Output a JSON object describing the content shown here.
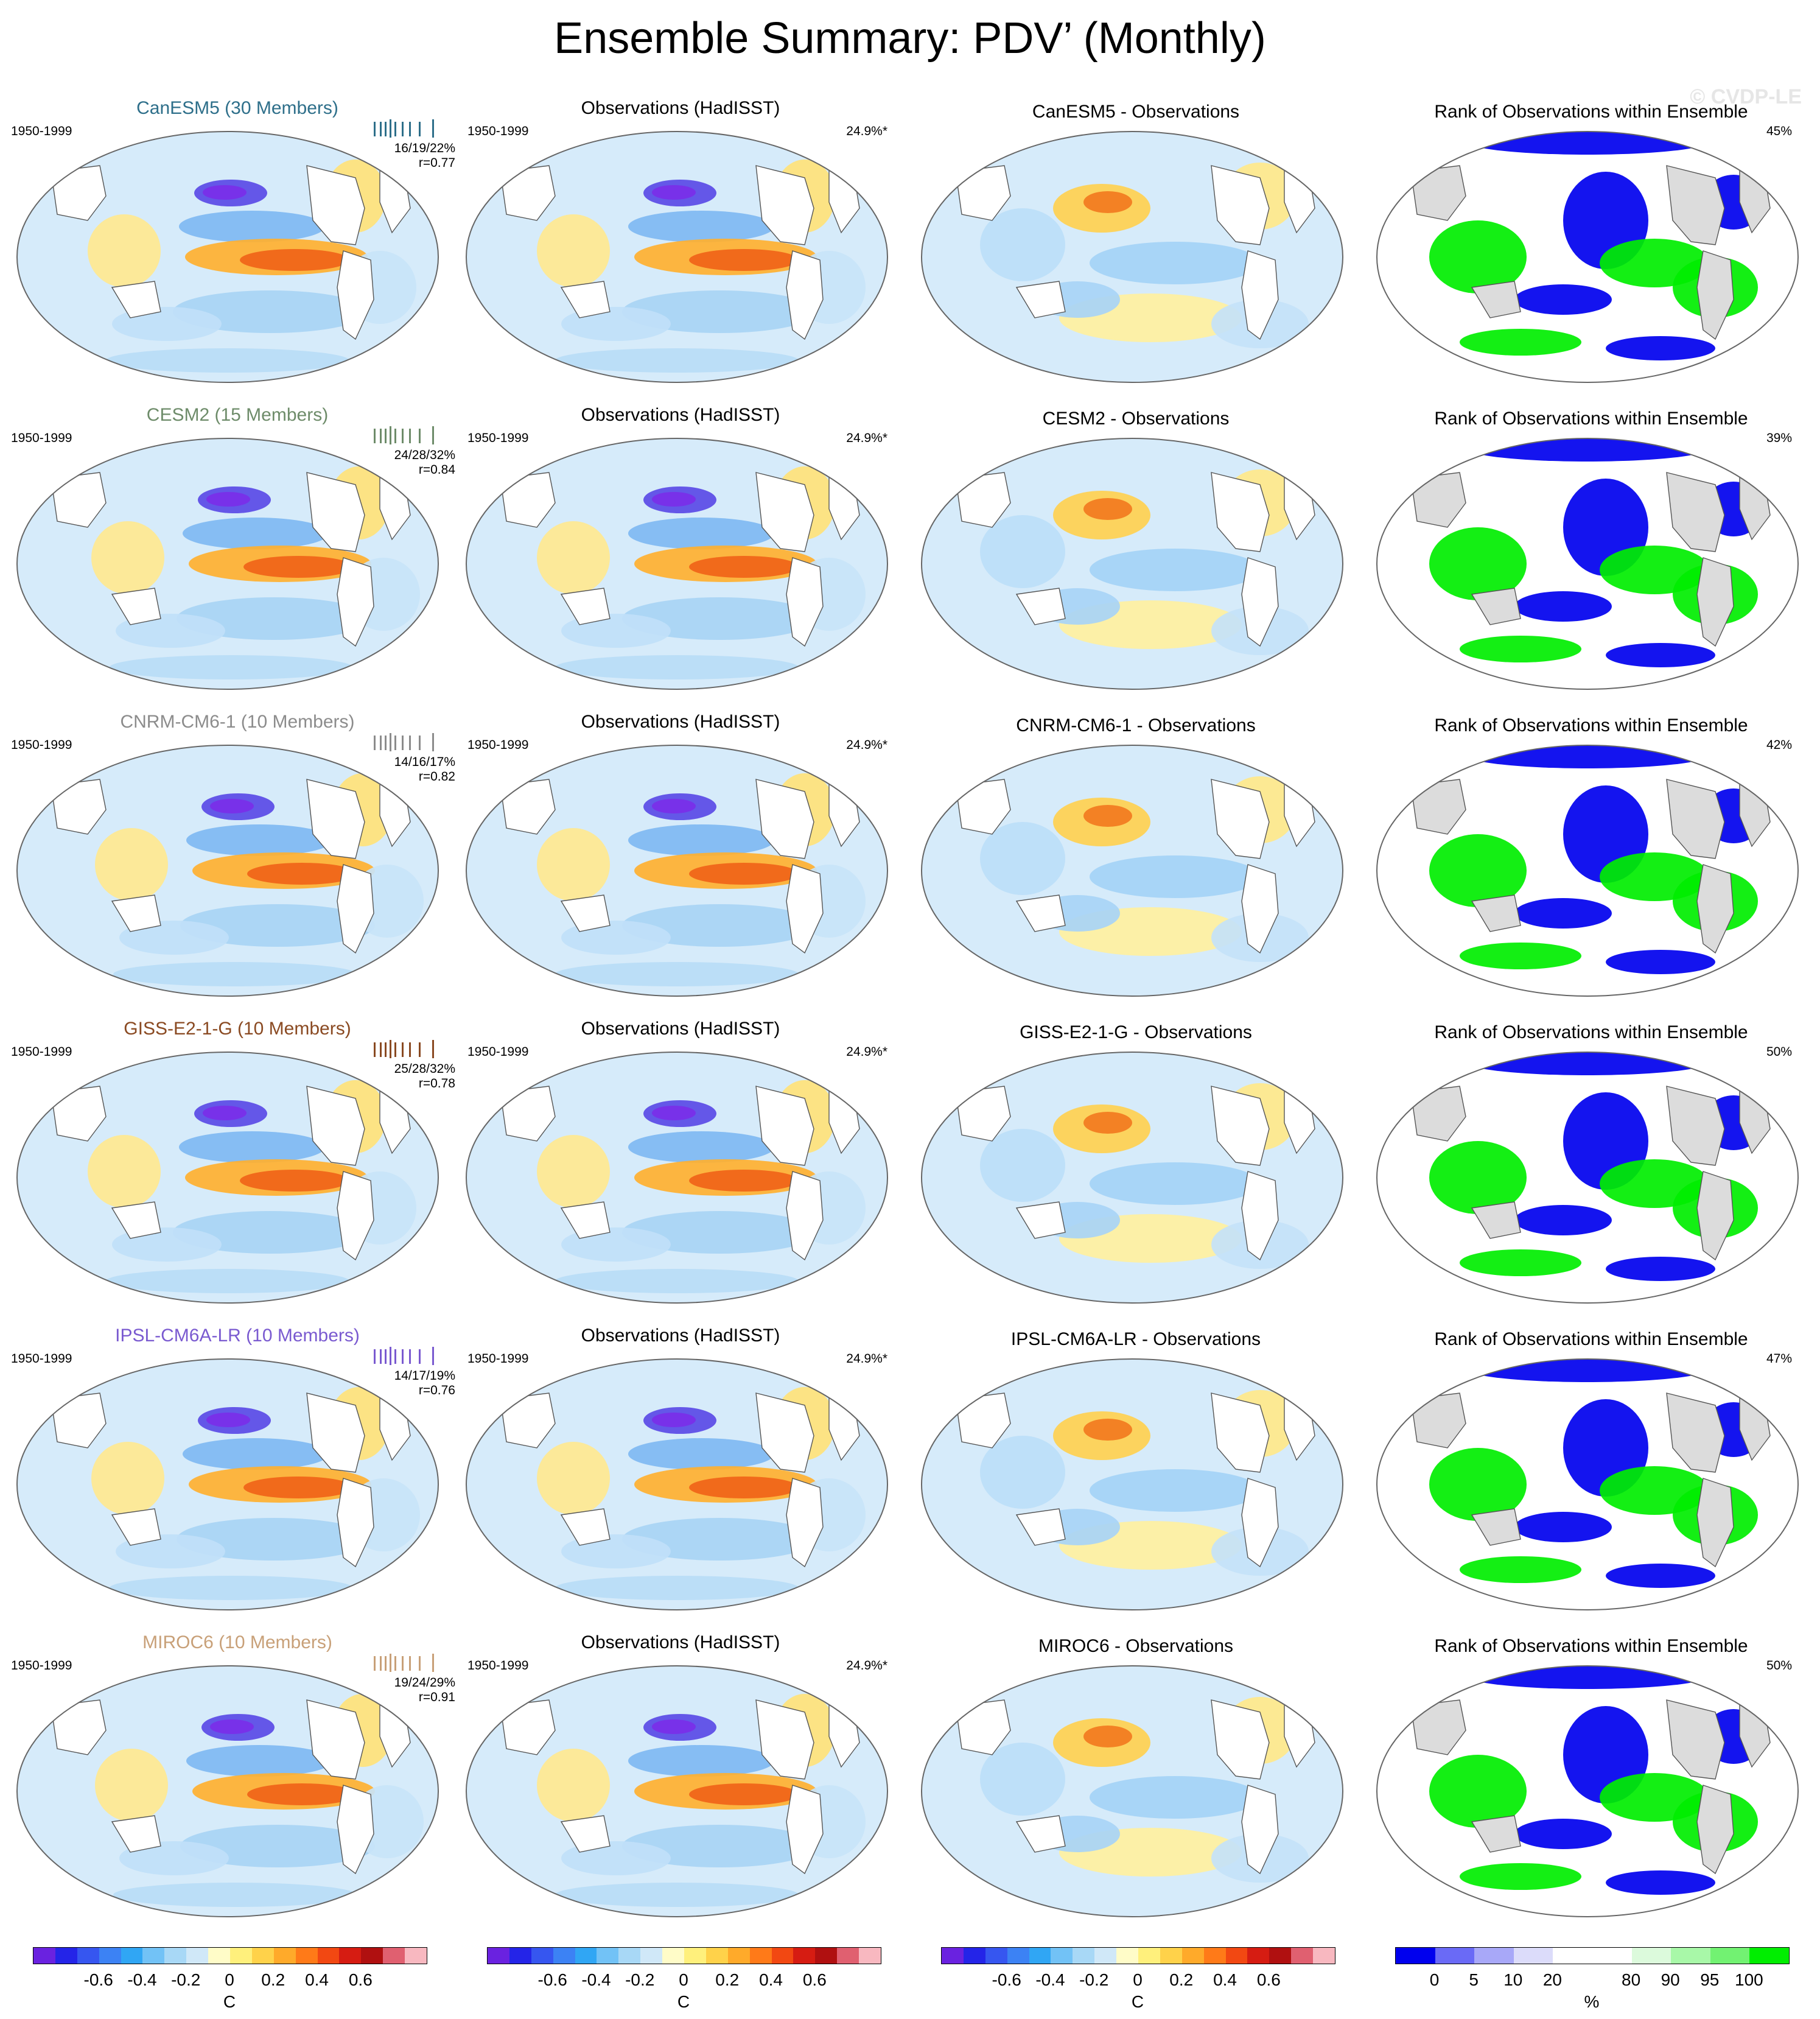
{
  "title": "Ensemble Summary: PDV’ (Monthly)",
  "watermark": "© CVDP-LE",
  "obs_title": "Observations (HadISST)",
  "rank_title": "Rank of Observations within Ensemble",
  "period": "1950-1999",
  "obs_pct": "24.9%*",
  "rows": [
    {
      "model": "CanESM5",
      "model_title": "CanESM5 (30 Members)",
      "color": "#2e6f8a",
      "stats": "16/19/22%",
      "r": "r=0.77",
      "diff_title": "CanESM5 - Observations",
      "rank_pct": "45%"
    },
    {
      "model": "CESM2",
      "model_title": "CESM2 (15 Members)",
      "color": "#6e8c6a",
      "stats": "24/28/32%",
      "r": "r=0.84",
      "diff_title": "CESM2 - Observations",
      "rank_pct": "39%"
    },
    {
      "model": "CNRM-CM6-1",
      "model_title": "CNRM-CM6-1 (10 Members)",
      "color": "#8c8c8c",
      "stats": "14/16/17%",
      "r": "r=0.82",
      "diff_title": "CNRM-CM6-1 - Observations",
      "rank_pct": "42%"
    },
    {
      "model": "GISS-E2-1-G",
      "model_title": "GISS-E2-1-G (10 Members)",
      "color": "#8a4a22",
      "stats": "25/28/32%",
      "r": "r=0.78",
      "diff_title": "GISS-E2-1-G - Observations",
      "rank_pct": "50%"
    },
    {
      "model": "IPSL-CM6A-LR",
      "model_title": "IPSL-CM6A-LR (10 Members)",
      "color": "#7a5ad0",
      "stats": "14/17/19%",
      "r": "r=0.76",
      "diff_title": "IPSL-CM6A-LR - Observations",
      "rank_pct": "47%"
    },
    {
      "model": "MIROC6",
      "model_title": "MIROC6 (10 Members)",
      "color": "#c8a078",
      "stats": "19/24/29%",
      "r": "r=0.91",
      "diff_title": "MIROC6 - Observations",
      "rank_pct": "50%"
    }
  ],
  "colorbar_sst": {
    "labels": [
      "-0.6",
      "-0.4",
      "-0.2",
      "0",
      "0.2",
      "0.4",
      "0.6"
    ],
    "unit": "C",
    "colors": [
      "#6a22e0",
      "#2424e8",
      "#3656f0",
      "#3c82f4",
      "#30a6f4",
      "#72c2f6",
      "#a8d8f6",
      "#d0e8f8",
      "#fffcc8",
      "#fff07c",
      "#ffd24a",
      "#ffaa2a",
      "#ff7a18",
      "#f24812",
      "#d61c12",
      "#b01010",
      "#e06070",
      "#f8b8c0"
    ]
  },
  "colorbar_rank": {
    "labels": [
      "0",
      "5",
      "10",
      "20",
      "80",
      "90",
      "95",
      "100"
    ],
    "unit": "%",
    "colors": [
      "#0000ee",
      "#6a6af6",
      "#a8a8f8",
      "#dcdcfa",
      "#ffffff",
      "#ffffff",
      "#dcfadc",
      "#a8f8a8",
      "#72f272",
      "#00ee00"
    ]
  }
}
